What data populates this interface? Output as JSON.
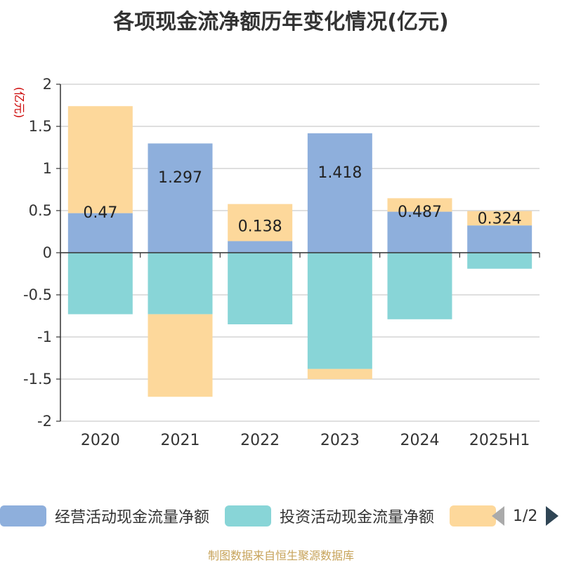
{
  "chart_data": {
    "type": "bar",
    "stacked": true,
    "title": "各项现金流净额历年变化情况(亿元)",
    "ylabel": "(亿元)",
    "xlabel": "",
    "ylim": [
      -2,
      2
    ],
    "yticks": [
      2,
      1.5,
      1,
      0.5,
      0,
      -0.5,
      -1,
      -1.5,
      -2
    ],
    "ytick_labels": [
      "2",
      "1.5",
      "1",
      "0.5",
      "0",
      "-0.5",
      "-1",
      "-1.5",
      "-2"
    ],
    "categories": [
      "2020",
      "2021",
      "2022",
      "2023",
      "2024",
      "2025H1"
    ],
    "grid": true,
    "legend_position": "bottom",
    "series": [
      {
        "name": "经营活动现金流量净额",
        "color": "#8eafdc",
        "values": [
          0.47,
          1.297,
          0.138,
          1.418,
          0.487,
          0.324
        ],
        "show_labels": true
      },
      {
        "name": "投资活动现金流量净额",
        "color": "#88d5d7",
        "values": [
          -0.73,
          -0.73,
          -0.85,
          -1.38,
          -0.79,
          -0.19
        ],
        "show_labels": false
      },
      {
        "name": "",
        "color": "#fdd89b",
        "values": [
          1.27,
          -0.98,
          0.44,
          -0.12,
          0.16,
          0.17
        ],
        "show_labels": false
      }
    ],
    "data_labels": [
      "0.47",
      "1.297",
      "0.138",
      "1.418",
      "0.487",
      "0.324"
    ]
  },
  "legend": {
    "items": [
      {
        "label": "经营活动现金流量净额",
        "color": "#8eafdc"
      },
      {
        "label": "投资活动现金流量净额",
        "color": "#88d5d7"
      },
      {
        "label": "",
        "color": "#fdd89b"
      }
    ],
    "page_indicator": "1/2"
  },
  "source_note": "制图数据来自恒生聚源数据库",
  "colors": {
    "title": "#333333",
    "axis": "#333333",
    "grid": "#cccccc",
    "ylabel": "#cc0000",
    "source": "#c7a35a"
  }
}
